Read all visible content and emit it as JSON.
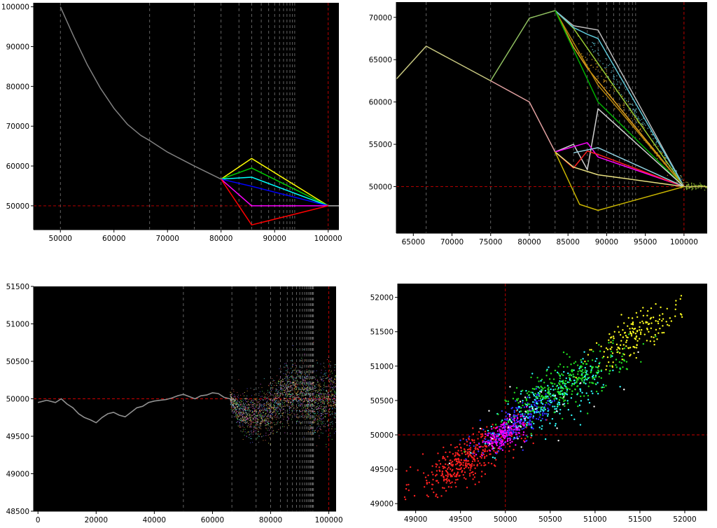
{
  "chart_data": [
    {
      "id": "tl",
      "type": "line",
      "xlim": [
        45000,
        102000
      ],
      "ylim": [
        44000,
        101000
      ],
      "xticks": [
        "50000",
        "60000",
        "70000",
        "80000",
        "90000",
        "100000"
      ],
      "xtick_values": [
        50000,
        60000,
        70000,
        80000,
        90000,
        100000
      ],
      "yticks": [
        "50000",
        "60000",
        "70000",
        "80000",
        "90000",
        "100000"
      ],
      "ytick_values": [
        50000,
        60000,
        70000,
        80000,
        90000,
        100000
      ],
      "background": "#000000",
      "hline": {
        "y": 50000,
        "color": "#cc0000"
      },
      "vline_red": {
        "x": 100000,
        "color": "#cc0000"
      },
      "vlines_gray": [
        50000,
        66667,
        75000,
        80000,
        83333,
        85714,
        87500,
        88889,
        90000,
        90909,
        91667,
        92308,
        92857,
        93333,
        93750
      ],
      "series": [
        {
          "color": "#808080",
          "x": [
            50000,
            52500,
            55000,
            57500,
            60000,
            62500,
            65000,
            66667,
            70000,
            75000,
            80000
          ],
          "y": [
            100000,
            92500,
            85500,
            79500,
            74500,
            70500,
            67700,
            66400,
            63500,
            60000,
            56700
          ]
        },
        {
          "color": "#ffff00",
          "x": [
            80000,
            85714,
            100000
          ],
          "y": [
            56700,
            61900,
            50000
          ]
        },
        {
          "color": "#00cc00",
          "x": [
            80000,
            85714,
            100000
          ],
          "y": [
            56700,
            59500,
            50000
          ]
        },
        {
          "color": "#00ffff",
          "x": [
            80000,
            85714,
            100000
          ],
          "y": [
            56700,
            57200,
            50000
          ]
        },
        {
          "color": "#0000ff",
          "x": [
            80000,
            85714,
            100000
          ],
          "y": [
            56700,
            54900,
            50000
          ]
        },
        {
          "color": "#ff00ff",
          "x": [
            80000,
            85714,
            100000
          ],
          "y": [
            56700,
            50000,
            50000
          ]
        },
        {
          "color": "#ff0000",
          "x": [
            80000,
            85714,
            100000
          ],
          "y": [
            56700,
            45200,
            50000
          ]
        },
        {
          "color": "#b0b0b0",
          "x": [
            100000,
            102000
          ],
          "y": [
            50000,
            50000
          ]
        }
      ]
    },
    {
      "id": "tr",
      "type": "line",
      "xlim": [
        62800,
        103000
      ],
      "ylim": [
        44500,
        71800
      ],
      "xticks": [
        "65000",
        "70000",
        "75000",
        "80000",
        "85000",
        "90000",
        "95000",
        "100000"
      ],
      "xtick_values": [
        65000,
        70000,
        75000,
        80000,
        85000,
        90000,
        95000,
        100000
      ],
      "yticks": [
        "50000",
        "55000",
        "60000",
        "65000",
        "70000"
      ],
      "ytick_values": [
        50000,
        55000,
        60000,
        65000,
        70000
      ],
      "background": "#000000",
      "hline": {
        "y": 50000,
        "color": "#cc0000"
      },
      "vline_red": {
        "x": 100000,
        "color": "#cc0000"
      },
      "vlines_gray": [
        66667,
        75000,
        80000,
        83333,
        85714,
        87500,
        88889,
        90000,
        90909,
        91667,
        92308,
        92857,
        93333,
        93750
      ],
      "series": [
        {
          "color": "#c8c880",
          "x": [
            62800,
            66667,
            75000
          ],
          "y": [
            62700,
            66600,
            62500
          ]
        },
        {
          "color": "#90c060",
          "x": [
            75000,
            80000,
            83333
          ],
          "y": [
            62500,
            69900,
            70800
          ]
        },
        {
          "color": "#e0a0a0",
          "x": [
            75000,
            80000,
            83333
          ],
          "y": [
            62500,
            60000,
            54100
          ]
        },
        {
          "color": "#9acd32",
          "x": [
            83333,
            85714,
            100000
          ],
          "y": [
            70800,
            68700,
            50000
          ]
        },
        {
          "color": "#bbbbbb",
          "x": [
            83333,
            85714,
            88889,
            100000
          ],
          "y": [
            70800,
            69000,
            68500,
            50000
          ]
        },
        {
          "color": "#5fc8d8",
          "x": [
            83333,
            85714,
            87500,
            88889,
            100000
          ],
          "y": [
            70800,
            68800,
            68000,
            67500,
            50000
          ]
        },
        {
          "color": "#e0a020",
          "x": [
            83333,
            85714,
            87500,
            100000
          ],
          "y": [
            70800,
            66500,
            64000,
            50000
          ]
        },
        {
          "color": "#b8860b",
          "x": [
            83333,
            88889,
            100000
          ],
          "y": [
            70800,
            62000,
            50000
          ]
        },
        {
          "color": "#00b000",
          "x": [
            83333,
            88889,
            100000
          ],
          "y": [
            70800,
            60000,
            50000
          ]
        },
        {
          "color": "#d0d0d0",
          "x": [
            83333,
            85714,
            87500,
            88889,
            100000
          ],
          "y": [
            54100,
            55000,
            52000,
            59200,
            50000
          ]
        },
        {
          "color": "#ff00ff",
          "x": [
            83333,
            87500,
            88889,
            100000
          ],
          "y": [
            54100,
            55200,
            53500,
            50000
          ]
        },
        {
          "color": "#ff2020",
          "x": [
            83333,
            85714,
            87500,
            88889,
            100000
          ],
          "y": [
            54100,
            52200,
            54200,
            53800,
            50000
          ]
        },
        {
          "color": "#90d0e0",
          "x": [
            85714,
            88889,
            100000
          ],
          "y": [
            54000,
            54600,
            50000
          ]
        },
        {
          "color": "#e8e080",
          "x": [
            83333,
            85714,
            88889,
            100000
          ],
          "y": [
            54100,
            52300,
            51400,
            50000
          ]
        },
        {
          "color": "#c8b400",
          "x": [
            83333,
            86500,
            88889,
            100000
          ],
          "y": [
            54100,
            47900,
            47200,
            50000
          ]
        },
        {
          "color": "#d0c060",
          "x": [
            100000,
            103000
          ],
          "y": [
            50000,
            50000
          ]
        }
      ],
      "scatter_clouds": [
        {
          "color": "#e0a020",
          "x0": 86000,
          "y0": 67000,
          "x1": 100000,
          "y1": 50000,
          "spread": 900,
          "n": 140
        },
        {
          "color": "#5fc8d8",
          "x0": 88000,
          "y0": 67000,
          "x1": 100000,
          "y1": 50000,
          "spread": 500,
          "n": 120
        },
        {
          "color": "#9acd32",
          "x0": 100000,
          "y0": 50000,
          "x1": 103000,
          "y1": 50000,
          "spread": 250,
          "n": 80
        }
      ]
    },
    {
      "id": "bl",
      "type": "line",
      "xlim": [
        -1500,
        102500
      ],
      "ylim": [
        48500,
        51500
      ],
      "xticks": [
        "0",
        "20000",
        "40000",
        "60000",
        "80000",
        "100000"
      ],
      "xtick_values": [
        0,
        20000,
        40000,
        60000,
        80000,
        100000
      ],
      "yticks": [
        "48500",
        "49000",
        "49500",
        "50000",
        "50500",
        "51000",
        "51500"
      ],
      "ytick_values": [
        48500,
        49000,
        49500,
        50000,
        50500,
        51000,
        51500
      ],
      "background": "#000000",
      "hline": {
        "y": 50000,
        "color": "#cc0000"
      },
      "vline_red": {
        "x": 100000,
        "color": "#cc0000"
      },
      "vlines_gray": [
        50000,
        66667,
        75000,
        80000,
        83333,
        85714,
        87500,
        88889,
        90000,
        90909,
        91667,
        92308,
        92857,
        93333,
        93750,
        94118,
        94444,
        94737
      ],
      "series": [
        {
          "color": "#909090",
          "x": [
            0,
            3000,
            6000,
            8000,
            10000,
            12000,
            14000,
            16000,
            18000,
            20000,
            22000,
            24000,
            26000,
            28000,
            30000,
            32000,
            34000,
            36000,
            38000,
            40000,
            42000,
            44000,
            46000,
            48000,
            50000,
            52000,
            54000,
            56000,
            58000,
            60000,
            62000,
            64000,
            66000,
            68000
          ],
          "y": [
            49950,
            49980,
            49950,
            50000,
            49930,
            49880,
            49800,
            49750,
            49720,
            49680,
            49750,
            49800,
            49820,
            49780,
            49760,
            49820,
            49880,
            49900,
            49950,
            49970,
            49980,
            49990,
            50010,
            50040,
            50060,
            50030,
            50000,
            50040,
            50050,
            50080,
            50070,
            50020,
            50000,
            49980
          ]
        }
      ],
      "noise_band": {
        "x_start": 66000,
        "x_end": 102500,
        "centers_x": [
          66000,
          70000,
          75000,
          80000,
          85000,
          90000,
          95000,
          100000,
          102500
        ],
        "centers_y": [
          50000,
          49800,
          49750,
          49850,
          50100,
          50100,
          49950,
          50000,
          50050
        ],
        "spread": [
          60,
          180,
          220,
          240,
          260,
          280,
          300,
          320,
          330
        ],
        "colors": [
          "#ff6060",
          "#60ff60",
          "#6060ff",
          "#ffff60",
          "#ff60ff",
          "#60ffff",
          "#c0c0c0",
          "#ffa040"
        ],
        "n": 2600
      }
    },
    {
      "id": "br",
      "type": "scatter",
      "xlim": [
        48800,
        52250
      ],
      "ylim": [
        48900,
        52200
      ],
      "xticks": [
        "49000",
        "49500",
        "50000",
        "50500",
        "51000",
        "51500",
        "52000"
      ],
      "xtick_values": [
        49000,
        49500,
        50000,
        50500,
        51000,
        51500,
        52000
      ],
      "yticks": [
        "49000",
        "49500",
        "50000",
        "50500",
        "51000",
        "51500",
        "52000"
      ],
      "ytick_values": [
        49000,
        49500,
        50000,
        50500,
        51000,
        51500,
        52000
      ],
      "background": "#000000",
      "hline": {
        "y": 50000,
        "color": "#cc0000"
      },
      "vline_red": {
        "x": 50000,
        "color": "#cc0000"
      },
      "clusters": [
        {
          "color": "#ff2020",
          "cx": 49550,
          "cy": 49620,
          "sx": 300,
          "sy": 250,
          "n": 380
        },
        {
          "color": "#ff00ff",
          "cx": 50000,
          "cy": 50020,
          "sx": 130,
          "sy": 120,
          "n": 240
        },
        {
          "color": "#3030ff",
          "cx": 50150,
          "cy": 50200,
          "sx": 220,
          "sy": 200,
          "n": 200
        },
        {
          "color": "#30ffff",
          "cx": 50550,
          "cy": 50550,
          "sx": 280,
          "sy": 260,
          "n": 230
        },
        {
          "color": "#20e020",
          "cx": 50700,
          "cy": 50750,
          "sx": 320,
          "sy": 270,
          "n": 300
        },
        {
          "color": "#ffff20",
          "cx": 51450,
          "cy": 51450,
          "sx": 250,
          "sy": 220,
          "n": 170
        },
        {
          "color": "#ffffff",
          "cx": 50300,
          "cy": 50300,
          "sx": 400,
          "sy": 350,
          "n": 30
        }
      ]
    }
  ]
}
